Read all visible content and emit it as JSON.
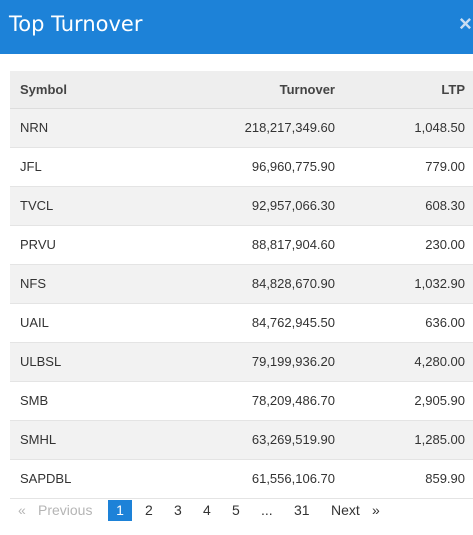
{
  "header": {
    "title": "Top Turnover",
    "close_glyph": "×"
  },
  "table": {
    "columns": [
      "Symbol",
      "Turnover",
      "LTP"
    ],
    "rows": [
      {
        "symbol": "NRN",
        "turnover": "218,217,349.60",
        "ltp": "1,048.50"
      },
      {
        "symbol": "JFL",
        "turnover": "96,960,775.90",
        "ltp": "779.00"
      },
      {
        "symbol": "TVCL",
        "turnover": "92,957,066.30",
        "ltp": "608.30"
      },
      {
        "symbol": "PRVU",
        "turnover": "88,817,904.60",
        "ltp": "230.00"
      },
      {
        "symbol": "NFS",
        "turnover": "84,828,670.90",
        "ltp": "1,032.90"
      },
      {
        "symbol": "UAIL",
        "turnover": "84,762,945.50",
        "ltp": "636.00"
      },
      {
        "symbol": "ULBSL",
        "turnover": "79,199,936.20",
        "ltp": "4,280.00"
      },
      {
        "symbol": "SMB",
        "turnover": "78,209,486.70",
        "ltp": "2,905.90"
      },
      {
        "symbol": "SMHL",
        "turnover": "63,269,519.90",
        "ltp": "1,285.00"
      },
      {
        "symbol": "SAPDBL",
        "turnover": "61,556,106.70",
        "ltp": "859.90"
      }
    ]
  },
  "pagination": {
    "prev_arrow": "«",
    "previous": "Previous",
    "pages": [
      "1",
      "2",
      "3",
      "4",
      "5"
    ],
    "ellipsis": "...",
    "last_page": "31",
    "next": "Next",
    "next_arrow": "»",
    "current_page": "1",
    "accent_color": "#1d82d8"
  }
}
